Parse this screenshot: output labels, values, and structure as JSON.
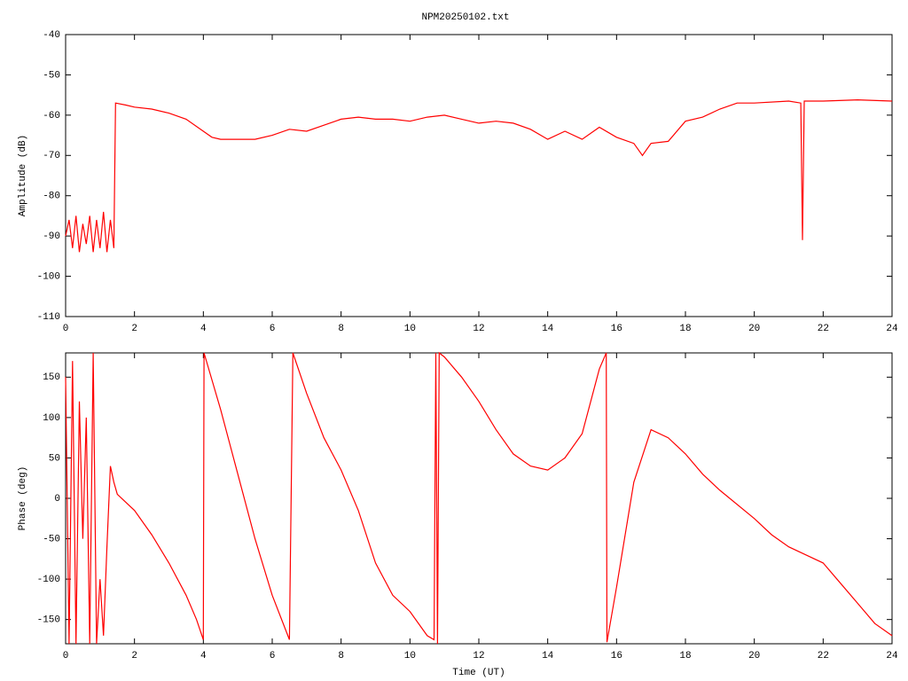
{
  "chart_data": [
    {
      "type": "line",
      "title": "NPM20250102.txt",
      "ylabel": "Amplitude (dB)",
      "x": [
        0,
        0.1,
        0.2,
        0.3,
        0.4,
        0.5,
        0.6,
        0.7,
        0.8,
        0.9,
        1.0,
        1.1,
        1.2,
        1.3,
        1.4,
        1.45,
        1.75,
        2,
        2.5,
        3,
        3.5,
        4,
        4.25,
        4.5,
        5,
        5.5,
        6,
        6.5,
        7,
        7.5,
        8,
        8.5,
        9,
        9.5,
        10,
        10.5,
        11,
        11.5,
        12,
        12.5,
        13,
        13.5,
        14,
        14.5,
        15,
        15.5,
        16,
        16.5,
        16.75,
        17,
        17.5,
        18,
        18.5,
        19,
        19.5,
        20,
        21,
        21.35,
        21.4,
        21.45,
        22,
        23,
        24
      ],
      "series": [
        {
          "name": "Amplitude",
          "color": "#ff0000",
          "values": [
            -90,
            -86,
            -93,
            -85,
            -94,
            -87,
            -92,
            -85,
            -94,
            -86,
            -93,
            -84,
            -94,
            -86,
            -93,
            -57,
            -57.5,
            -58,
            -58.5,
            -59.5,
            -61,
            -64,
            -65.5,
            -66,
            -66,
            -66,
            -65,
            -63.5,
            -64,
            -62.5,
            -61,
            -60.5,
            -61,
            -61,
            -61.5,
            -60.5,
            -60,
            -61,
            -62,
            -61.5,
            -62,
            -63.5,
            -66,
            -64,
            -66,
            -63,
            -65.5,
            -67,
            -70,
            -67,
            -66.5,
            -61.5,
            -60.5,
            -58.5,
            -57,
            -57,
            -56.5,
            -57,
            -91,
            -56.5,
            -56.5,
            -56.2,
            -56.5
          ]
        }
      ],
      "xlim": [
        0,
        24
      ],
      "xticks": [
        0,
        2,
        4,
        6,
        8,
        10,
        12,
        14,
        16,
        18,
        20,
        22,
        24
      ],
      "ylim": [
        -110,
        -40
      ],
      "yticks": [
        -110,
        -100,
        -90,
        -80,
        -70,
        -60,
        -50,
        -40
      ]
    },
    {
      "type": "line",
      "xlabel": "Time (UT)",
      "ylabel": "Phase (deg)",
      "x": [
        0,
        0.1,
        0.2,
        0.3,
        0.4,
        0.5,
        0.6,
        0.7,
        0.8,
        0.9,
        1.0,
        1.1,
        1.2,
        1.3,
        1.4,
        1.5,
        2,
        2.5,
        3,
        3.5,
        3.8,
        4.0,
        4.02,
        4.5,
        5,
        5.5,
        6,
        6.5,
        6.6,
        7,
        7.5,
        8,
        8.5,
        9,
        9.5,
        10,
        10.5,
        10.7,
        10.75,
        10.8,
        10.85,
        11,
        11.5,
        12,
        12.5,
        13,
        13.5,
        14,
        14.5,
        15,
        15.5,
        15.7,
        15.72,
        16,
        16.5,
        17,
        17.5,
        18,
        18.5,
        19,
        20,
        20.5,
        21,
        21.5,
        22,
        22.5,
        23,
        23.5,
        24
      ],
      "series": [
        {
          "name": "Phase",
          "color": "#ff0000",
          "values": [
            150,
            -180,
            170,
            -180,
            120,
            -50,
            100,
            -180,
            180,
            -180,
            -100,
            -170,
            -60,
            40,
            20,
            5,
            -15,
            -45,
            -80,
            -120,
            -150,
            -175,
            180,
            110,
            30,
            -50,
            -120,
            -175,
            180,
            130,
            75,
            35,
            -15,
            -80,
            -120,
            -140,
            -170,
            -175,
            180,
            -180,
            180,
            175,
            150,
            120,
            85,
            55,
            40,
            35,
            50,
            80,
            160,
            180,
            -178,
            -110,
            20,
            85,
            75,
            55,
            30,
            10,
            -25,
            -45,
            -60,
            -70,
            -80,
            -105,
            -130,
            -155,
            -170
          ]
        }
      ],
      "xlim": [
        0,
        24
      ],
      "xticks": [
        0,
        2,
        4,
        6,
        8,
        10,
        12,
        14,
        16,
        18,
        20,
        22,
        24
      ],
      "ylim": [
        -180,
        180
      ],
      "yticks": [
        -150,
        -100,
        -50,
        0,
        50,
        100,
        150
      ]
    }
  ]
}
